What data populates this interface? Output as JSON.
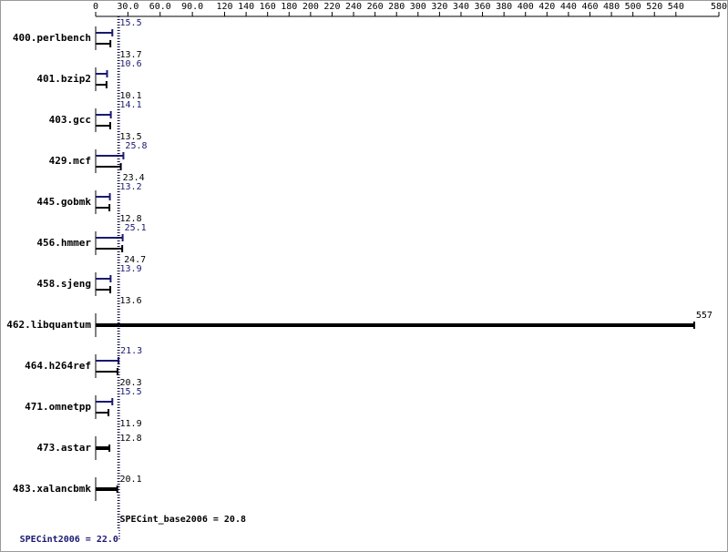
{
  "chart_data": {
    "type": "bar",
    "orientation": "horizontal",
    "categories": [
      "400.perlbench",
      "401.bzip2",
      "403.gcc",
      "429.mcf",
      "445.gobmk",
      "456.hmmer",
      "458.sjeng",
      "462.libquantum",
      "464.h264ref",
      "471.omnetpp",
      "473.astar",
      "483.xalancbmk"
    ],
    "series": [
      {
        "name": "SPECint2006",
        "color": "#191970",
        "values": [
          15.5,
          10.6,
          14.1,
          25.8,
          13.2,
          25.1,
          13.9,
          null,
          21.3,
          15.5,
          null,
          null
        ]
      },
      {
        "name": "SPECint_base2006",
        "color": "#000000",
        "values": [
          13.7,
          10.1,
          13.5,
          23.4,
          12.8,
          24.7,
          13.6,
          557,
          20.3,
          11.9,
          12.8,
          20.1
        ]
      }
    ],
    "reference_lines": [
      {
        "label": "SPECint_base2006 = 20.8",
        "value": 20.8,
        "color": "#000000"
      },
      {
        "label": "SPECint2006 = 22.0",
        "value": 22.0,
        "color": "#191970"
      }
    ],
    "xlim": [
      0,
      580
    ],
    "xticks": [
      0,
      {
        "value": 30,
        "label": "30.0"
      },
      {
        "value": 60,
        "label": "60.0"
      },
      {
        "value": 90,
        "label": "90.0"
      },
      120,
      140,
      160,
      180,
      200,
      220,
      240,
      260,
      280,
      300,
      320,
      340,
      360,
      380,
      400,
      420,
      440,
      460,
      480,
      500,
      520,
      540,
      580
    ]
  }
}
